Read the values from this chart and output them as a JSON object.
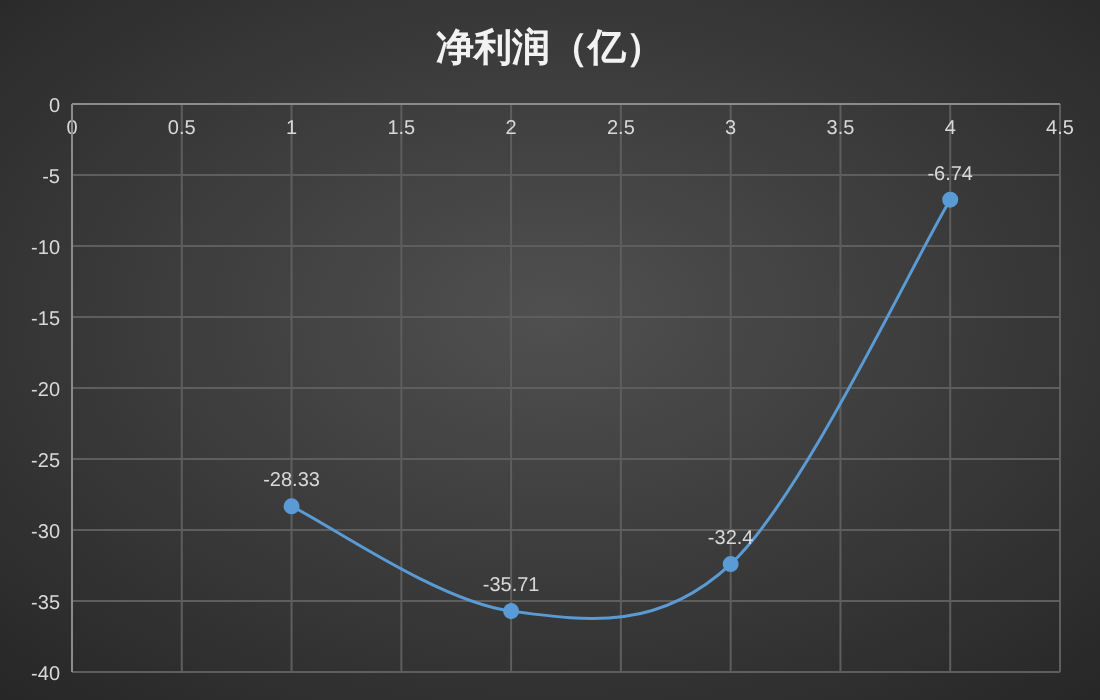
{
  "chart_data": {
    "type": "line",
    "title": "净利润（亿）",
    "x": [
      1,
      2,
      3,
      4
    ],
    "series": [
      {
        "color": "#5b9bd5",
        "values": [
          -28.33,
          -35.71,
          -32.4,
          -6.74
        ]
      }
    ],
    "xlim": [
      0,
      4.5
    ],
    "xticks": [
      0,
      0.5,
      1,
      1.5,
      2,
      2.5,
      3,
      3.5,
      4,
      4.5
    ],
    "ylim": [
      -40,
      0
    ],
    "yticks": [
      -40,
      -35,
      -30,
      -25,
      -20,
      -15,
      -10,
      -5,
      0
    ],
    "grid": true,
    "marker": "circle",
    "data_labels": true
  }
}
